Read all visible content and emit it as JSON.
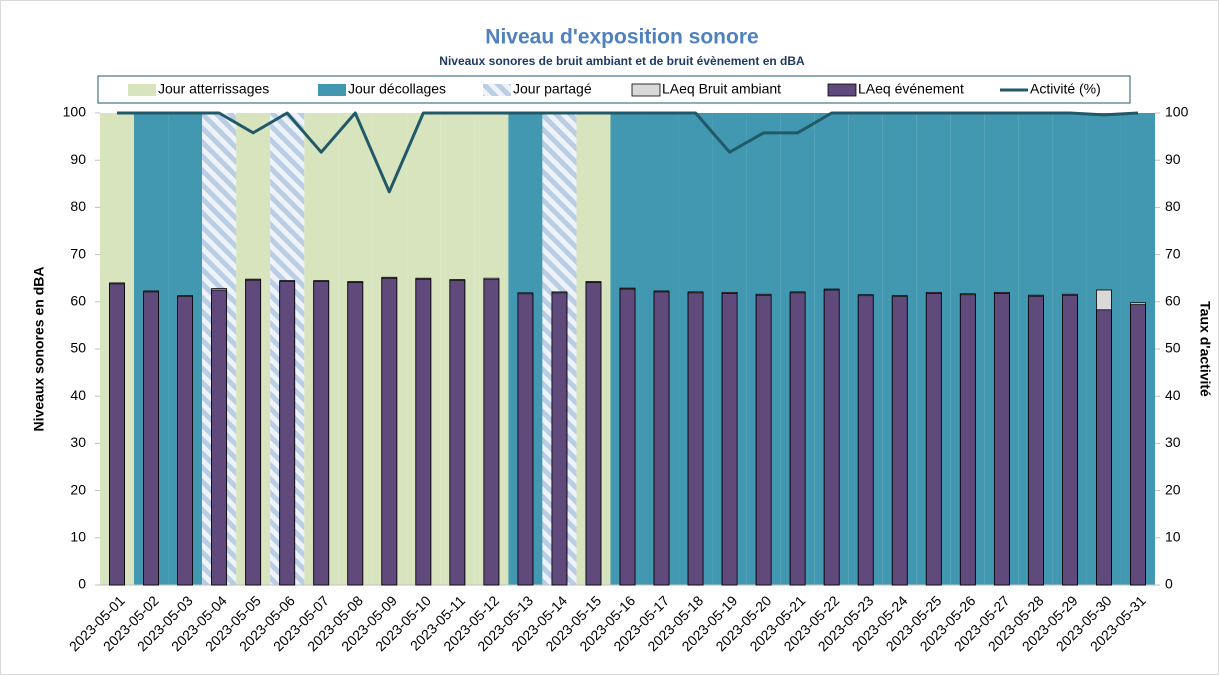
{
  "chart_data": {
    "type": "bar",
    "title": "Niveau d'exposition sonore",
    "subtitle": "Niveaux sonores de bruit ambiant et de bruit évènement en dBA",
    "y_label": "Niveaux sonores en dBA",
    "y2_label": "Taux d'activité",
    "categories": [
      "2023-05-01",
      "2023-05-02",
      "2023-05-03",
      "2023-05-04",
      "2023-05-05",
      "2023-05-06",
      "2023-05-07",
      "2023-05-08",
      "2023-05-09",
      "2023-05-10",
      "2023-05-11",
      "2023-05-12",
      "2023-05-13",
      "2023-05-14",
      "2023-05-15",
      "2023-05-16",
      "2023-05-17",
      "2023-05-18",
      "2023-05-19",
      "2023-05-20",
      "2023-05-21",
      "2023-05-22",
      "2023-05-23",
      "2023-05-24",
      "2023-05-25",
      "2023-05-26",
      "2023-05-27",
      "2023-05-28",
      "2023-05-29",
      "2023-05-30",
      "2023-05-31"
    ],
    "series": [
      {
        "name": "Jour atterrissages",
        "kind": "background",
        "color": "#d7e4bd",
        "values": [
          100,
          null,
          null,
          null,
          100,
          null,
          100,
          100,
          100,
          100,
          100,
          100,
          null,
          null,
          100,
          null,
          null,
          null,
          null,
          null,
          null,
          null,
          null,
          null,
          null,
          null,
          null,
          null,
          null,
          null,
          null
        ]
      },
      {
        "name": "Jour décollages",
        "kind": "background",
        "color": "#4198b0",
        "values": [
          null,
          100,
          100,
          null,
          null,
          null,
          null,
          null,
          null,
          null,
          null,
          null,
          100,
          null,
          null,
          100,
          100,
          100,
          100,
          100,
          100,
          100,
          100,
          100,
          100,
          100,
          100,
          100,
          100,
          100,
          100
        ]
      },
      {
        "name": "Jour partagé",
        "kind": "hatched",
        "color": "#b9cde5",
        "values": [
          null,
          null,
          null,
          100,
          null,
          100,
          null,
          null,
          null,
          null,
          null,
          null,
          null,
          100,
          null,
          null,
          null,
          null,
          null,
          null,
          null,
          null,
          null,
          null,
          null,
          null,
          null,
          null,
          null,
          null,
          null
        ]
      },
      {
        "name": "LAeq Bruit ambiant",
        "kind": "bar",
        "color": "#d9d9d9",
        "values": [
          64.0,
          62.3,
          61.3,
          62.8,
          64.8,
          64.5,
          64.5,
          64.3,
          65.2,
          65.0,
          64.7,
          65.0,
          61.9,
          62.1,
          64.3,
          62.9,
          62.3,
          62.1,
          62.0,
          61.6,
          62.1,
          62.7,
          61.5,
          61.3,
          62.0,
          61.7,
          62.0,
          61.4,
          61.6,
          62.5,
          59.8
        ]
      },
      {
        "name": "LAeq événement",
        "kind": "bar",
        "color": "#604a7b",
        "values": [
          63.8,
          62.1,
          61.1,
          62.5,
          64.6,
          64.3,
          64.3,
          64.1,
          65.0,
          64.8,
          64.5,
          64.7,
          61.7,
          61.9,
          64.1,
          62.7,
          62.1,
          61.9,
          61.8,
          61.4,
          61.9,
          62.5,
          61.3,
          61.1,
          61.8,
          61.5,
          61.8,
          61.2,
          61.4,
          58.3,
          59.4
        ]
      },
      {
        "name": "Activité (%)",
        "kind": "line",
        "axis": "y2",
        "color": "#215968",
        "values": [
          100,
          100,
          100,
          100,
          95.8,
          100,
          91.7,
          100,
          83.3,
          100,
          100,
          100,
          100,
          100,
          100,
          100,
          100,
          100,
          91.7,
          95.8,
          95.8,
          100,
          100,
          100,
          100,
          100,
          100,
          100,
          100,
          99.6,
          100
        ]
      }
    ],
    "ylim": [
      0,
      100
    ],
    "yticks": [
      0,
      10,
      20,
      30,
      40,
      50,
      60,
      70,
      80,
      90,
      100
    ],
    "y2lim": [
      0,
      100
    ],
    "y2ticks": [
      0,
      10,
      20,
      30,
      40,
      50,
      60,
      70,
      80,
      90,
      100
    ],
    "legend": "top"
  }
}
